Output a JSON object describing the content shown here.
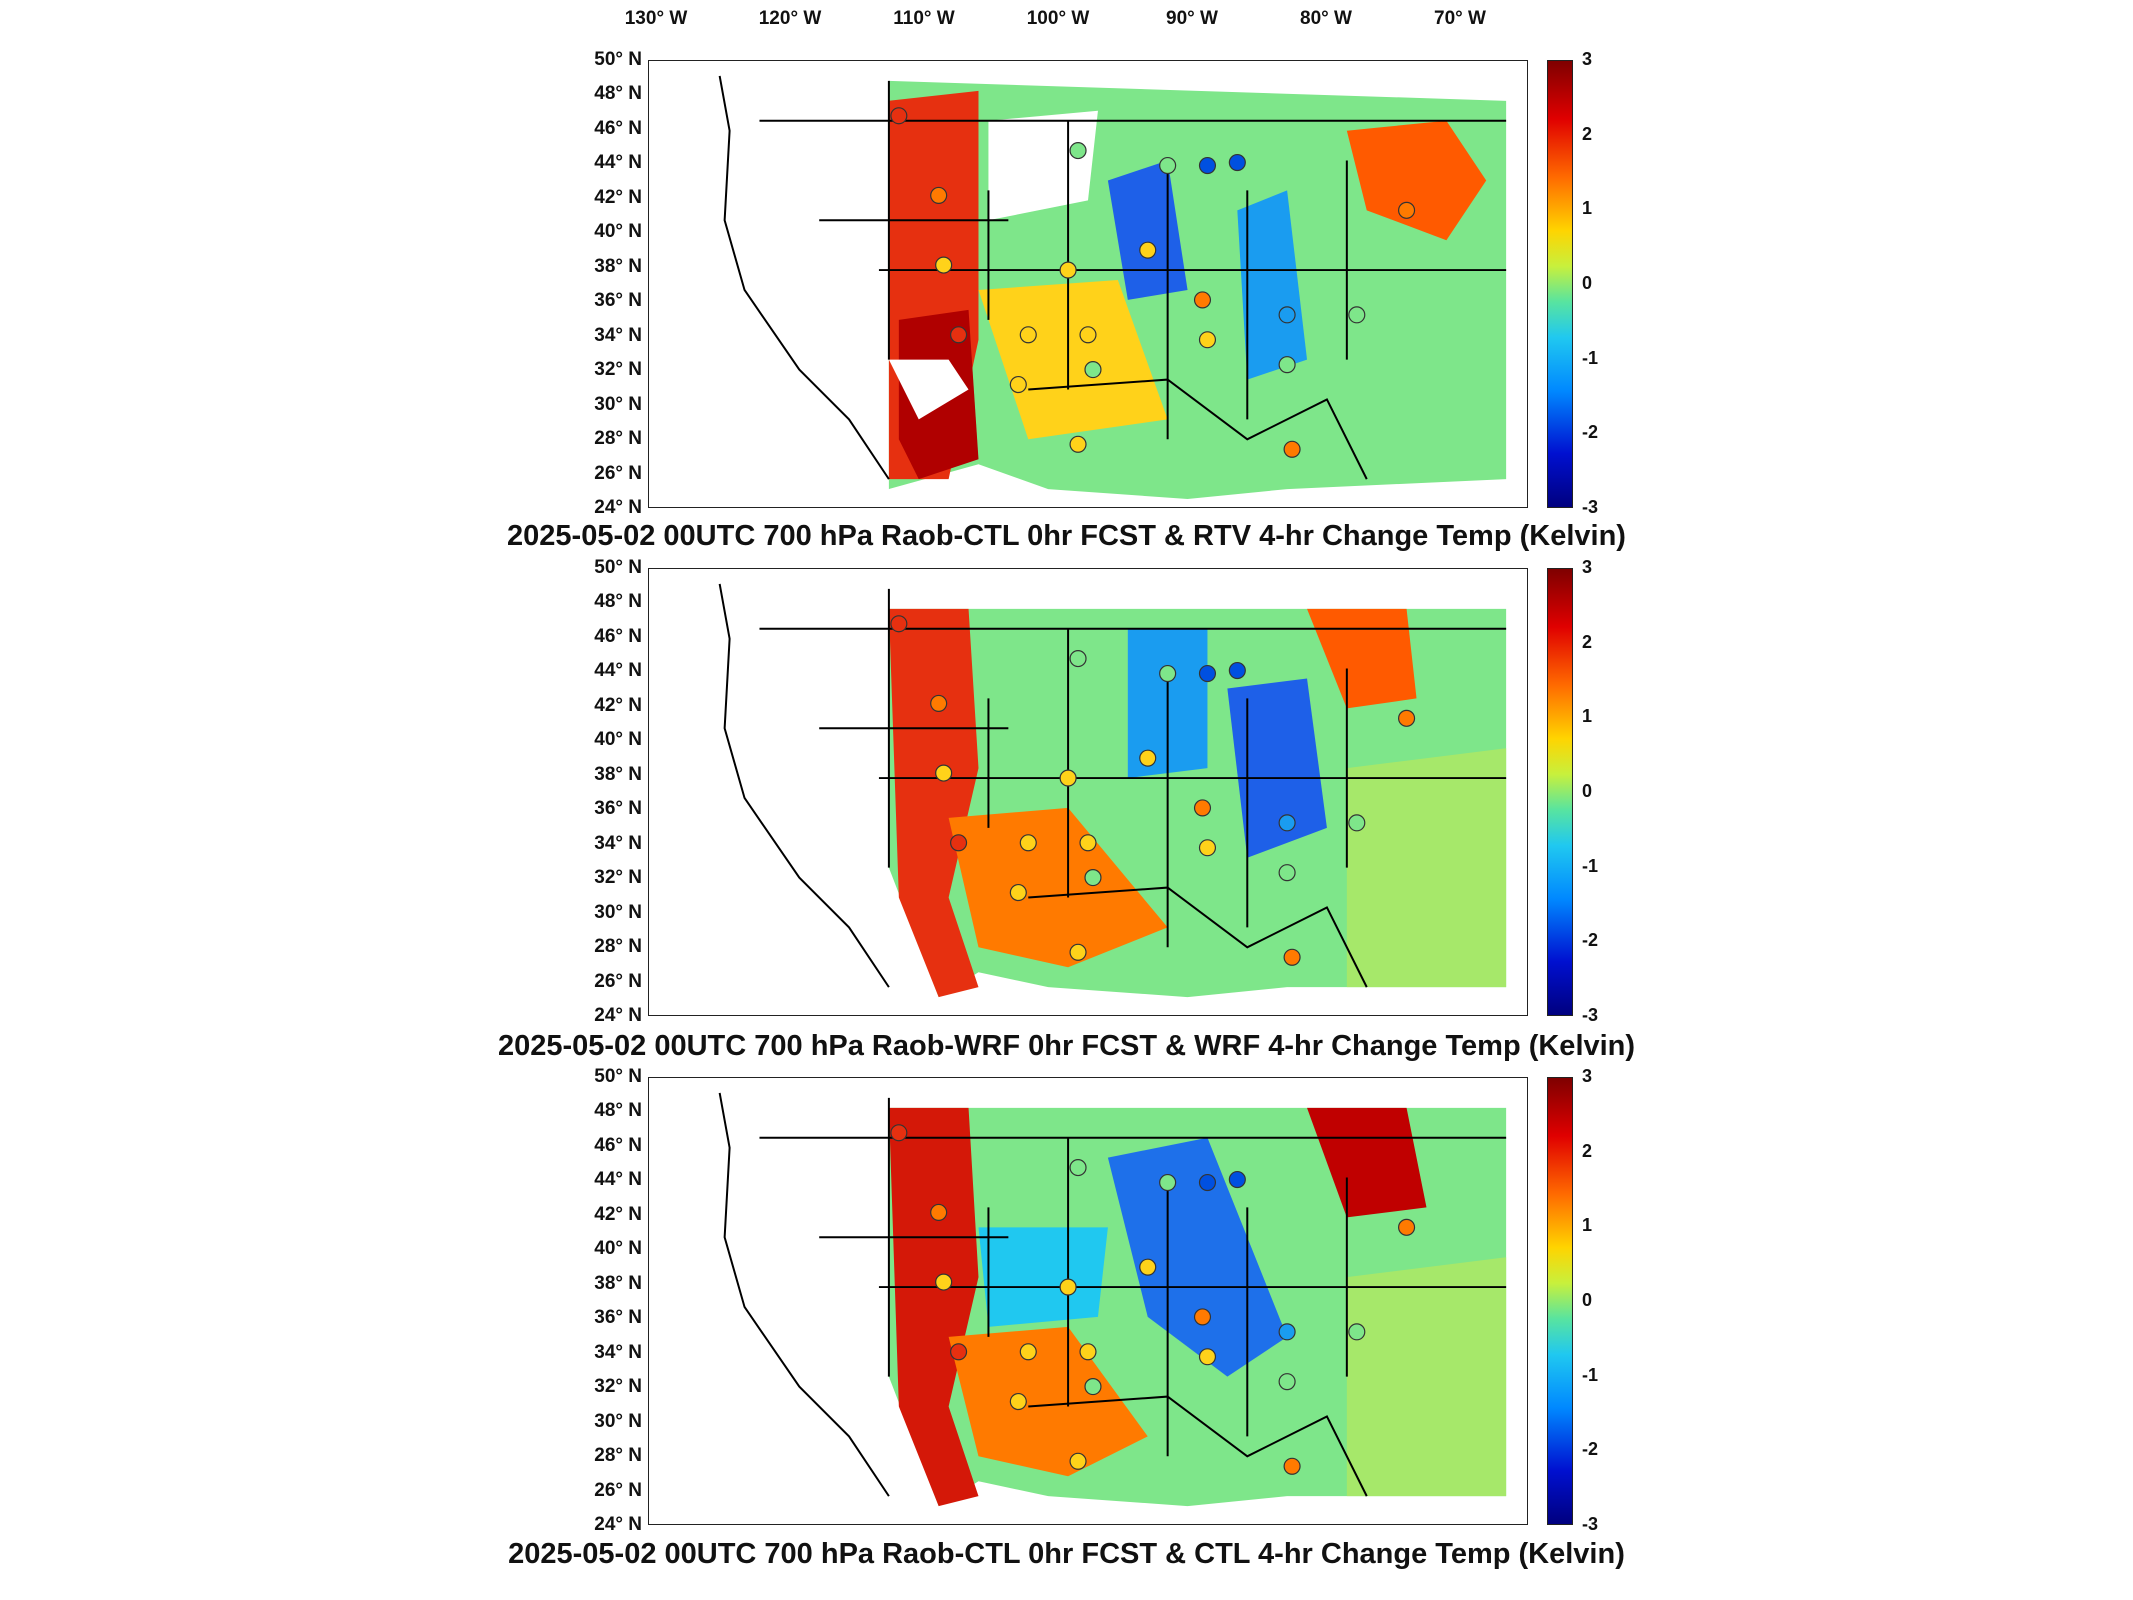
{
  "lon_labels": [
    "130° W",
    "120° W",
    "110° W",
    "100° W",
    "90° W",
    "80° W",
    "70° W"
  ],
  "lat_labels": [
    "50° N",
    "48° N",
    "46° N",
    "44° N",
    "42° N",
    "40° N",
    "38° N",
    "36° N",
    "34° N",
    "32° N",
    "30° N",
    "28° N",
    "26° N",
    "24° N"
  ],
  "colorbar_labels": [
    "3",
    "2",
    "1",
    "0",
    "-1",
    "-2",
    "-3"
  ],
  "colorbar_range": [
    -3,
    3
  ],
  "colors": {
    "hot": "#b00000",
    "warm": "#ff7a00",
    "neutral": "#7ee68a",
    "cool": "#22a8f0",
    "cold": "#0028c8"
  },
  "panels": [
    {
      "title": "2025-05-02 00UTC 700 hPa Raob-CTL 0hr FCST & RTV 4-hr Change Temp (Kelvin)"
    },
    {
      "title": "2025-05-02 00UTC 700 hPa Raob-WRF 0hr FCST & WRF 4-hr Change Temp (Kelvin)"
    },
    {
      "title": "2025-05-02 00UTC 700 hPa Raob-CTL 0hr FCST & CTL 4-hr Change Temp (Kelvin)"
    }
  ]
}
